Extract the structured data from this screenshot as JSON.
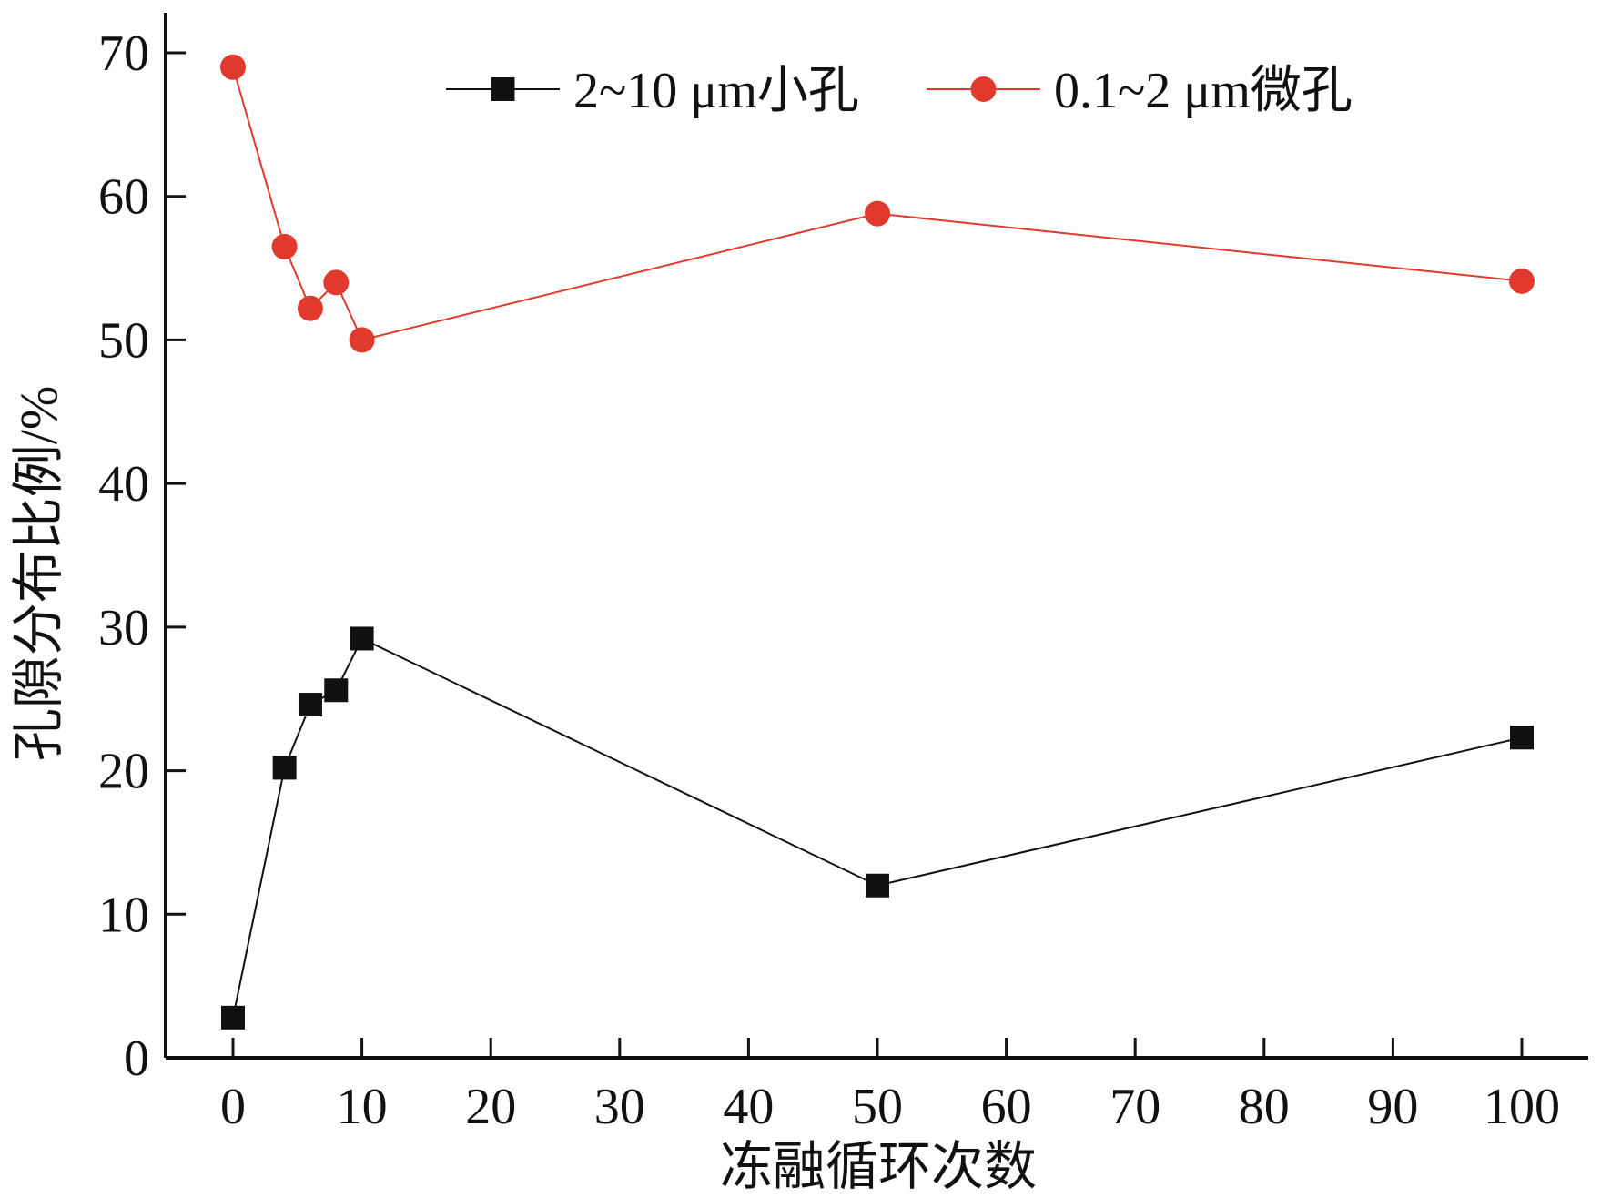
{
  "chart_data": {
    "type": "line",
    "xlabel": "冻融循环次数",
    "ylabel": "孔隙分布比例/%",
    "xlim": [
      -5,
      104
    ],
    "ylim": [
      0,
      73
    ],
    "xticks": [
      0,
      10,
      20,
      30,
      40,
      50,
      60,
      70,
      80,
      90,
      100
    ],
    "yticks": [
      0,
      10,
      20,
      30,
      40,
      50,
      60,
      70
    ],
    "legend_position": "top-center",
    "grid": false,
    "series": [
      {
        "name": "2~10 μm小孔",
        "color": "#111111",
        "marker": "square",
        "x": [
          0,
          4,
          6,
          8,
          10,
          50,
          100
        ],
        "y": [
          2.8,
          20.2,
          24.6,
          25.6,
          29.2,
          12.0,
          22.3
        ]
      },
      {
        "name": "0.1~2 μm微孔",
        "color": "#e03a2e",
        "marker": "circle",
        "x": [
          0,
          4,
          6,
          8,
          10,
          50,
          100
        ],
        "y": [
          69.0,
          56.5,
          52.2,
          54.0,
          50.0,
          58.8,
          54.1
        ]
      }
    ]
  }
}
